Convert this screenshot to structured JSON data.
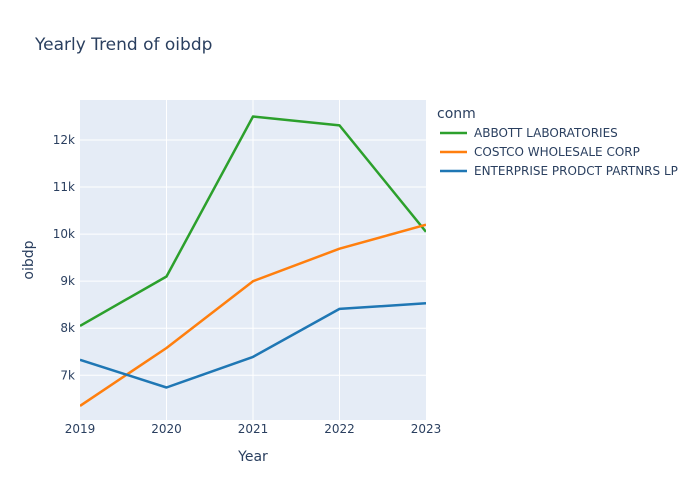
{
  "chart_data": {
    "type": "line",
    "title": "Yearly Trend of oibdp",
    "xlabel": "Year",
    "ylabel": "oibdp",
    "x": [
      2019,
      2020,
      2021,
      2022,
      2023
    ],
    "xlim": [
      2019,
      2023
    ],
    "ylim": [
      6050,
      12850
    ],
    "yticks": [
      7000,
      8000,
      9000,
      10000,
      11000,
      12000
    ],
    "ytick_labels": [
      "7k",
      "8k",
      "9k",
      "10k",
      "11k",
      "12k"
    ],
    "xtick_labels": [
      "2019",
      "2020",
      "2021",
      "2022",
      "2023"
    ],
    "legend_title": "conm",
    "legend_position": "right",
    "grid": true,
    "series": [
      {
        "name": "ABBOTT LABORATORIES",
        "color": "#2ca02c",
        "values": [
          8050,
          9100,
          12500,
          12310,
          10050
        ]
      },
      {
        "name": "COSTCO WHOLESALE CORP",
        "color": "#ff7f0e",
        "values": [
          6350,
          7580,
          9000,
          9690,
          10200
        ]
      },
      {
        "name": "ENTERPRISE PRODCT PARTNRS LP",
        "color": "#1f77b4",
        "values": [
          7330,
          6740,
          7390,
          8410,
          8530
        ]
      }
    ]
  }
}
